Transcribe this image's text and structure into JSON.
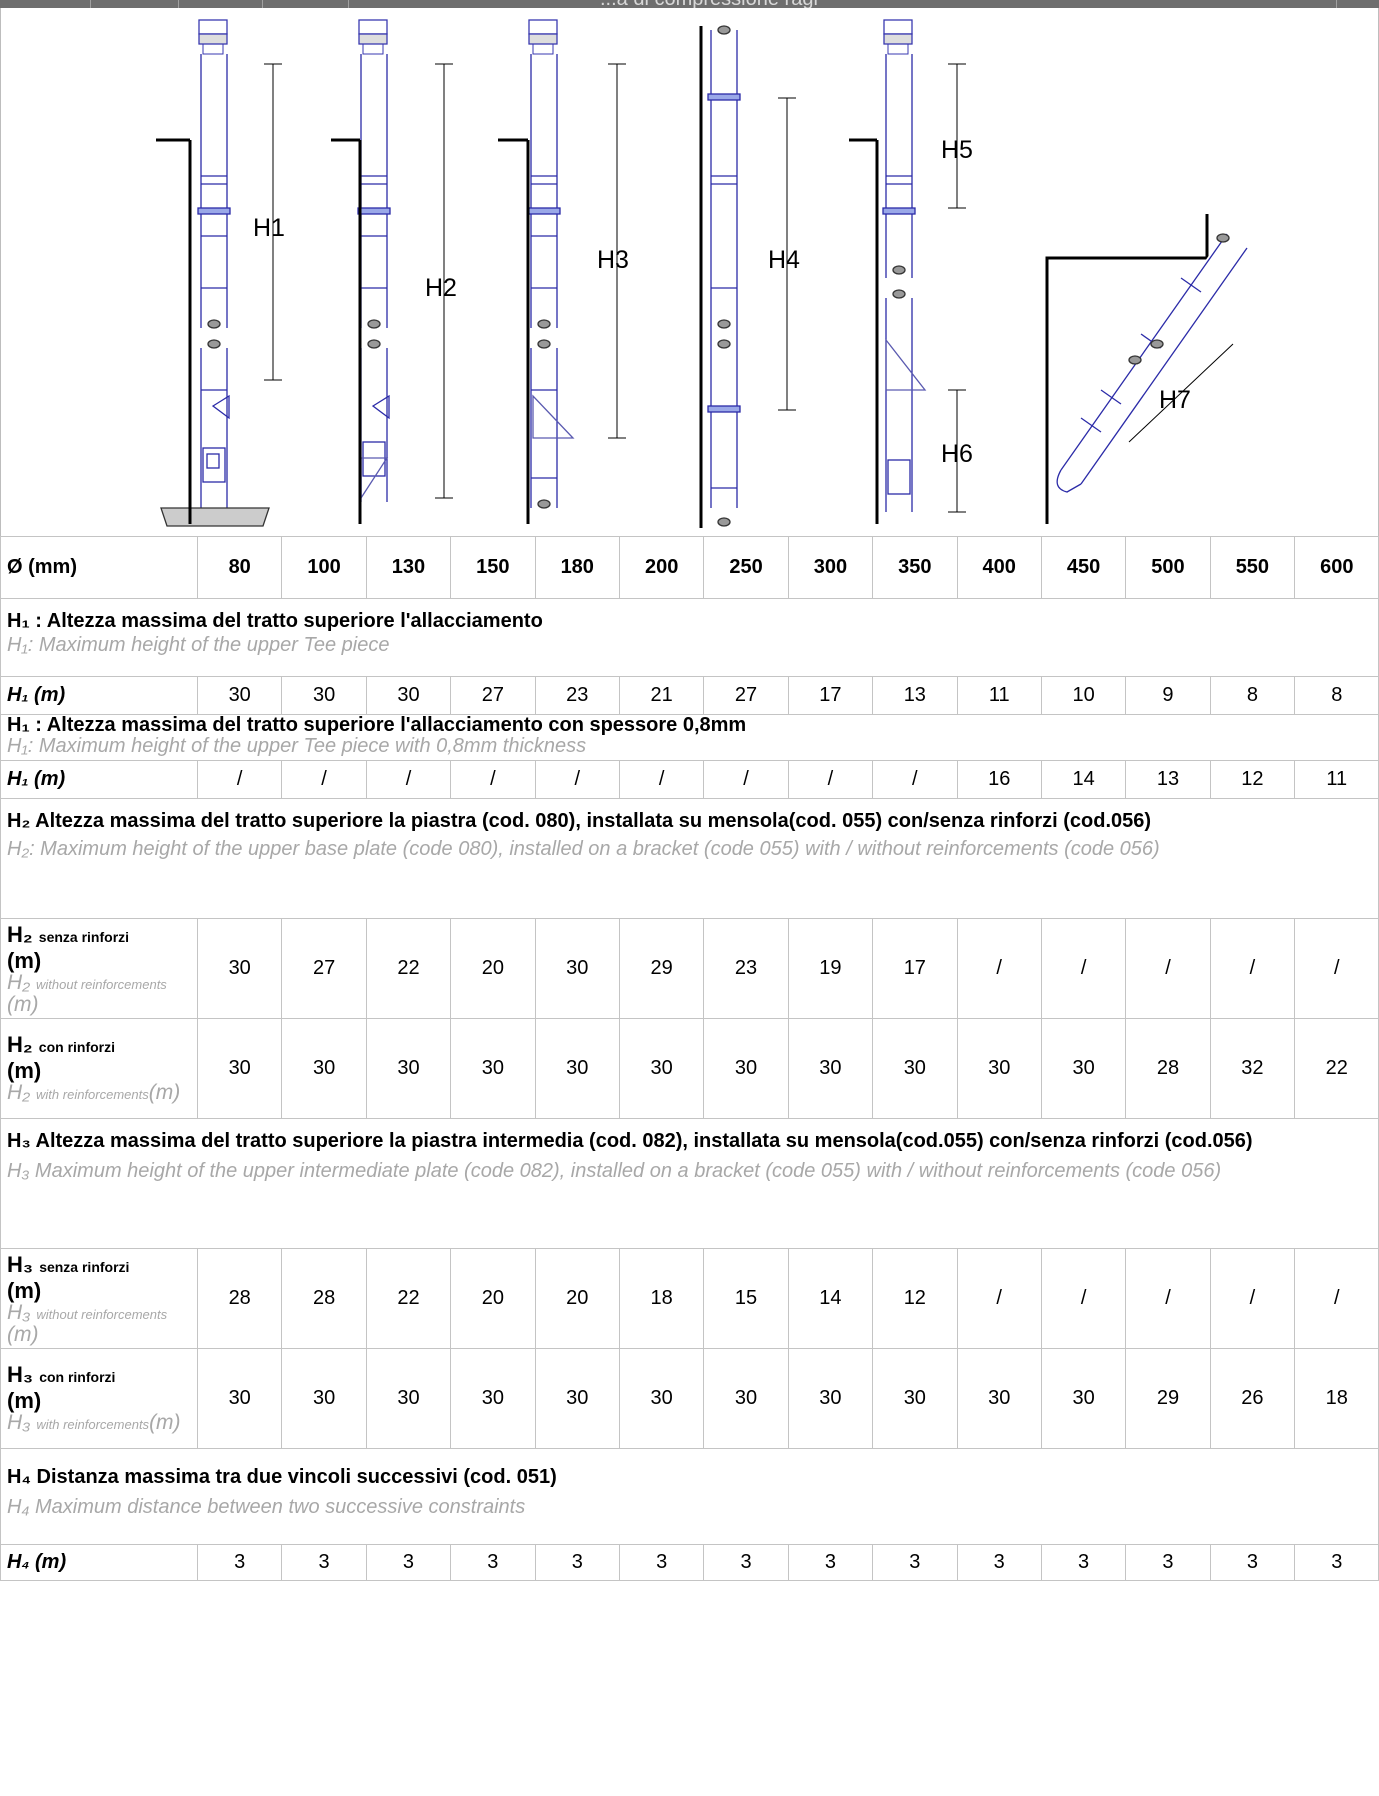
{
  "top_banner": {
    "title_fragment": "...a di compressione ragi"
  },
  "diagram": {
    "labels": {
      "h1": "H1",
      "h2": "H2",
      "h3": "H3",
      "h4": "H4",
      "h5": "H5",
      "h6": "H6",
      "h7": "H7"
    }
  },
  "table": {
    "header": {
      "label": "Ø (mm)",
      "diameters": [
        "80",
        "100",
        "130",
        "150",
        "180",
        "200",
        "250",
        "300",
        "350",
        "400",
        "450",
        "500",
        "550",
        "600"
      ]
    },
    "sec1": {
      "it": "H₁ : Altezza massima del tratto superiore l'allacciamento",
      "en": "H₁: Maximum height of the upper Tee piece"
    },
    "row1": {
      "label": "H₁ (m)",
      "values": [
        "30",
        "30",
        "30",
        "27",
        "23",
        "21",
        "27",
        "17",
        "13",
        "11",
        "10",
        "9",
        "8",
        "8"
      ]
    },
    "sec2": {
      "it": "H₁ : Altezza massima del tratto superiore l'allacciamento con spessore 0,8mm",
      "en": "H₁: Maximum height of the upper Tee piece with 0,8mm thickness"
    },
    "row2": {
      "label": "H₁ (m)",
      "values": [
        "/",
        "/",
        "/",
        "/",
        "/",
        "/",
        "/",
        "/",
        "/",
        "16",
        "14",
        "13",
        "12",
        "11"
      ]
    },
    "sec3": {
      "it": "H₂  Altezza massima del tratto superiore la piastra (cod. 080), installata su mensola(cod. 055) con/senza rinforzi (cod.056)",
      "en": "H₂: Maximum height of the upper base plate (code 080), installed on a bracket (code 055) with / without reinforcements (code 056)"
    },
    "row3": {
      "main": "H₂",
      "main_sub": "senza rinforzi",
      "unit": "(m)",
      "en": "H₂",
      "en_sub": "without reinforcements",
      "en_unit": "(m)",
      "values": [
        "30",
        "27",
        "22",
        "20",
        "30",
        "29",
        "23",
        "19",
        "17",
        "/",
        "/",
        "/",
        "/",
        "/"
      ]
    },
    "row4": {
      "main": "H₂",
      "main_sub": "con rinforzi",
      "unit": "(m)",
      "en": "H₂",
      "en_sub": "with reinforcements",
      "en_unit": "(m)",
      "values": [
        "30",
        "30",
        "30",
        "30",
        "30",
        "30",
        "30",
        "30",
        "30",
        "30",
        "30",
        "28",
        "32",
        "22"
      ]
    },
    "sec4": {
      "it": "H₃ Altezza massima del tratto superiore la piastra intermedia (cod. 082), installata su mensola(cod.055) con/senza rinforzi (cod.056)",
      "en": "H₃ Maximum height of the upper intermediate plate (code 082), installed on a bracket (code 055) with / without reinforcements (code 056)"
    },
    "row5": {
      "main": "H₃",
      "main_sub": "senza rinforzi",
      "unit": "(m)",
      "en": "H₃",
      "en_sub": "without reinforcements",
      "en_unit": "(m)",
      "values": [
        "28",
        "28",
        "22",
        "20",
        "20",
        "18",
        "15",
        "14",
        "12",
        "/",
        "/",
        "/",
        "/",
        "/"
      ]
    },
    "row6": {
      "main": "H₃",
      "main_sub": "con rinforzi",
      "unit": "(m)",
      "en": "H₃",
      "en_sub": "with reinforcements",
      "en_unit": "(m)",
      "values": [
        "30",
        "30",
        "30",
        "30",
        "30",
        "30",
        "30",
        "30",
        "30",
        "30",
        "30",
        "29",
        "26",
        "18"
      ]
    },
    "sec5": {
      "it": "H₄ Distanza massima tra due vincoli successivi (cod. 051)",
      "en": "H₄ Maximum distance between two successive constraints"
    },
    "row7": {
      "label": "H₄ (m)",
      "values": [
        "3",
        "3",
        "3",
        "3",
        "3",
        "3",
        "3",
        "3",
        "3",
        "3",
        "3",
        "3",
        "3",
        "3"
      ]
    }
  }
}
